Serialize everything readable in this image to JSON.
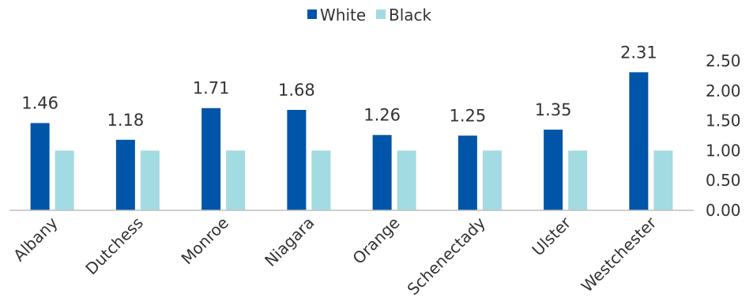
{
  "chart_data": {
    "type": "bar",
    "categories": [
      "Albany",
      "Dutchess",
      "Monroe",
      "Niagara",
      "Orange",
      "Schenectady",
      "Ulster",
      "Westchester"
    ],
    "series": [
      {
        "name": "White",
        "color": "#0055a8",
        "values": [
          1.46,
          1.18,
          1.71,
          1.68,
          1.26,
          1.25,
          1.35,
          2.31
        ],
        "data_labels": [
          "1.46",
          "1.18",
          "1.71",
          "1.68",
          "1.26",
          "1.25",
          "1.35",
          "2.31"
        ]
      },
      {
        "name": "Black",
        "color": "#a3dbe2",
        "values": [
          1.0,
          1.0,
          1.0,
          1.0,
          1.0,
          1.0,
          1.0,
          1.0
        ]
      }
    ],
    "ylim": [
      0,
      2.5
    ],
    "yticks": [
      "0.00",
      "0.50",
      "1.00",
      "1.50",
      "2.00",
      "2.50"
    ],
    "y_axis_side": "right",
    "grid": false,
    "legend_position": "top-center",
    "title": "",
    "xlabel": "",
    "ylabel": ""
  }
}
